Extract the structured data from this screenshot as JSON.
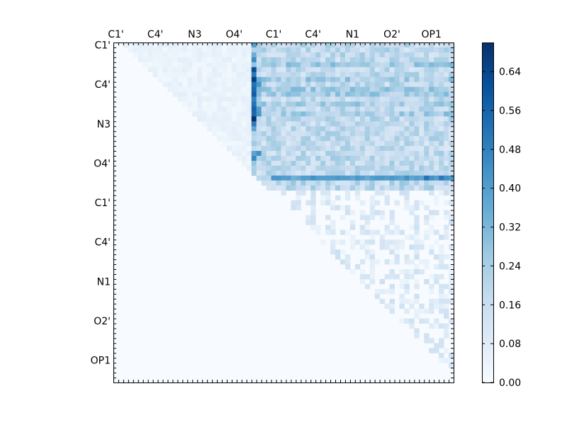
{
  "chart_data": {
    "type": "heatmap",
    "title": "",
    "xlabel": "",
    "ylabel": "",
    "grid": false,
    "size": 69,
    "colormap": "Blues",
    "clim": [
      0.0,
      0.7
    ],
    "x_tick_labels": [
      "C1'",
      "C4'",
      "N3",
      "O4'",
      "C1'",
      "C4'",
      "N1",
      "O2'",
      "OP1"
    ],
    "y_tick_labels": [
      "C1'",
      "C4'",
      "N3",
      "O4'",
      "C1'",
      "C4'",
      "N1",
      "O2'",
      "OP1"
    ],
    "label_index_positions": [
      0.5,
      8.5,
      16.5,
      24.5,
      32.5,
      40.5,
      48.5,
      56.5,
      64.5
    ],
    "colorbar": {
      "ticks": [
        0.0,
        0.08,
        0.16,
        0.24,
        0.32,
        0.4,
        0.48,
        0.56,
        0.64
      ],
      "tick_labels": [
        "0.00",
        "0.08",
        "0.16",
        "0.24",
        "0.32",
        "0.40",
        "0.48",
        "0.56",
        "0.64"
      ],
      "placement": "right"
    },
    "values_note": "upper-triangular pairwise matrix; highlights listed as [row, col, value]",
    "highlight_columns": [
      {
        "col": 28,
        "rows": [
          0,
          1,
          2,
          3,
          4,
          5,
          6,
          7,
          8,
          9,
          10,
          11,
          12,
          13,
          14,
          15,
          16,
          17,
          18,
          19,
          20,
          21,
          22,
          23,
          24
        ],
        "values": [
          0.4,
          0.22,
          0.35,
          0.45,
          0.28,
          0.62,
          0.5,
          0.66,
          0.52,
          0.55,
          0.58,
          0.48,
          0.52,
          0.56,
          0.55,
          0.7,
          0.5,
          0.38,
          0.22,
          0.2,
          0.26,
          0.18,
          0.38,
          0.46,
          0.28
        ]
      },
      {
        "col": 29,
        "rows": [
          7,
          8,
          13,
          14,
          22
        ],
        "values": [
          0.35,
          0.42,
          0.4,
          0.42,
          0.44
        ]
      }
    ],
    "highlight_rows": [
      {
        "row": 27,
        "from_col": 32,
        "to_col": 68,
        "values": [
          0.42,
          0.42,
          0.4,
          0.4,
          0.34,
          0.36,
          0.4,
          0.4,
          0.44,
          0.4,
          0.4,
          0.4,
          0.4,
          0.42,
          0.4,
          0.4,
          0.38,
          0.42,
          0.4,
          0.36,
          0.4,
          0.42,
          0.42,
          0.4,
          0.42,
          0.4,
          0.38,
          0.44,
          0.38,
          0.4,
          0.38,
          0.52,
          0.44,
          0.4,
          0.5,
          0.44,
          0.42
        ]
      }
    ]
  }
}
